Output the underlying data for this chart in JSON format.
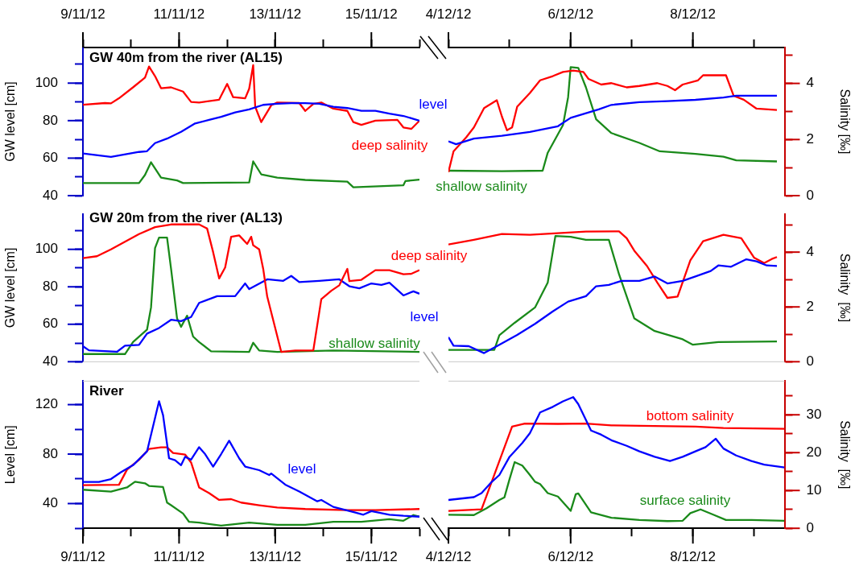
{
  "chart_data": [
    {
      "type": "line",
      "title": "GW 40m from the river (AL15)",
      "ylabel": "GW level [cm]",
      "tick_labels": "xy",
      "marker": "none",
      "xlim": [
        "--11-09",
        "--11-16"
      ],
      "xticks": [
        {
          "value": "--11-09",
          "label": "9/11/12"
        },
        {
          "value": "--11-10",
          "label": null
        },
        {
          "value": "--11-11",
          "label": "11/11/12"
        },
        {
          "value": "--11-12",
          "label": null
        },
        {
          "value": "--11-13",
          "label": "13/11/12"
        },
        {
          "value": "--11-14",
          "label": null
        },
        {
          "value": "--11-15",
          "label": "15/11/12"
        },
        {
          "value": "--11-16",
          "label": null
        }
      ],
      "ylim": [
        40,
        119
      ],
      "yticks": [
        40,
        {
          "value": 50,
          "label": null
        },
        60,
        {
          "value": 70,
          "label": null
        },
        80,
        {
          "value": 90,
          "label": null
        },
        100,
        {
          "value": 110,
          "label": null
        }
      ],
      "y2lim": [
        0,
        5.28
      ],
      "series": [
        {
          "name": "level",
          "color": "#0000ff",
          "x": [
            "--11-09T00:00",
            "--11-09T14:00",
            "--11-10T04:00",
            "--11-10T08:00",
            "--11-10T12:00",
            "--11-10T18:00",
            "--11-11T01:00",
            "--11-11T08:00",
            "--11-11T15:00",
            "--11-11T21:00",
            "--11-12T04:00",
            "--11-12T11:00",
            "--11-12T18:00",
            "--11-13T01:00",
            "--11-13T08:00",
            "--11-13T15:00",
            "--11-13T22:00",
            "--11-14T05:00",
            "--11-14T12:00",
            "--11-14T19:00",
            "--11-15T02:00",
            "--11-15T09:00",
            "--11-15T16:00",
            "--11-16T00:00"
          ],
          "values": [
            62.5,
            60.7,
            63.3,
            63.7,
            68,
            70.4,
            74,
            78.5,
            80.4,
            82,
            84.4,
            86,
            88.4,
            89,
            89.3,
            89.3,
            89,
            87.4,
            86.7,
            85.2,
            85.2,
            83.7,
            82.5,
            80
          ]
        },
        {
          "name": "deep salinity",
          "color": "#ff0000",
          "axis": "y2",
          "x": [
            "--11-09T00:00",
            "--11-09T11:00",
            "--11-09T14:00",
            "--11-09T18:00",
            "--11-10T01:00",
            "--11-10T07:00",
            "--11-10T09:00",
            "--11-10T12:00",
            "--11-10T15:00",
            "--11-10T20:00",
            "--11-11T02:00",
            "--11-11T06:00",
            "--11-11T10:00",
            "--11-11T20:00",
            "--11-12T00:00",
            "--11-12T03:00",
            "--11-12T09:00",
            "--11-12T11:00",
            "--11-12T13:00",
            "--11-12T14:00",
            "--11-12T17:00",
            "--11-12T22:00",
            "--11-13T01:00",
            "--11-13T12:00",
            "--11-13T15:00",
            "--11-13T19:00",
            "--11-13T23:00",
            "--11-14T05:00",
            "--11-14T12:00",
            "--11-14T15:00",
            "--11-14T19:00",
            "--11-15T02:00",
            "--11-15T13:00",
            "--11-15T16:00",
            "--11-15T20:00",
            "--11-16T00:00"
          ],
          "values": [
            3.24,
            3.3,
            3.29,
            3.47,
            3.86,
            4.21,
            4.6,
            4.26,
            3.83,
            3.86,
            3.71,
            3.34,
            3.32,
            3.42,
            3.98,
            3.51,
            3.47,
            3.81,
            4.65,
            3.17,
            2.62,
            3.22,
            3.32,
            3.3,
            3.02,
            3.27,
            3.32,
            3.1,
            3.02,
            2.62,
            2.52,
            2.67,
            2.7,
            2.43,
            2.38,
            2.67
          ]
        },
        {
          "name": "shallow salinity",
          "color": "#1a8a1a",
          "axis": "y2",
          "x": [
            "--11-09T00:00",
            "--11-10T04:00",
            "--11-10T07:00",
            "--11-10T10:00",
            "--11-10T15:00",
            "--11-10T23:00",
            "--11-11T02:00",
            "--11-12T11:00",
            "--11-12T13:00",
            "--11-12T17:00",
            "--11-13T01:00",
            "--11-13T15:00",
            "--11-14T12:00",
            "--11-14T15:00",
            "--11-15T16:00",
            "--11-15T17:00",
            "--11-16T00:00"
          ],
          "values": [
            0.45,
            0.45,
            0.74,
            1.19,
            0.64,
            0.54,
            0.45,
            0.47,
            1.22,
            0.76,
            0.64,
            0.56,
            0.5,
            0.3,
            0.37,
            0.52,
            0.57
          ]
        }
      ]
    },
    {
      "type": "line",
      "y2label": "Salinity [‰]",
      "tick_labels": "xy2",
      "marker": "none",
      "xlim": [
        "--12-04",
        "--12-09T12:00"
      ],
      "xticks": [
        {
          "value": "--12-04",
          "label": "4/12/12"
        },
        {
          "value": "--12-05",
          "label": null
        },
        {
          "value": "--12-06",
          "label": "6/12/12"
        },
        {
          "value": "--12-07",
          "label": null
        },
        {
          "value": "--12-08",
          "label": "8/12/12"
        },
        {
          "value": "--12-09",
          "label": null
        }
      ],
      "ylim": [
        40,
        119
      ],
      "y2lim": [
        0,
        5.28
      ],
      "y2ticks": [
        0,
        {
          "value": 1,
          "label": null
        },
        2,
        {
          "value": 3,
          "label": null
        },
        4,
        {
          "value": 5,
          "label": null
        }
      ],
      "series": [
        {
          "color": "#0000ff",
          "x": [
            "--12-04T00:00",
            "--12-04T03:00",
            "--12-04T10:00",
            "--12-04T21:00",
            "--12-05T08:00",
            "--12-05T19:00",
            "--12-06T00:00",
            "--12-06T11:00",
            "--12-06T16:00",
            "--12-07T03:00",
            "--12-07T14:00",
            "--12-08T01:00",
            "--12-08T12:00",
            "--12-08T17:00",
            "--12-08T23:00",
            "--12-09T09:00"
          ],
          "values": [
            69,
            67.4,
            70.4,
            71.9,
            74,
            77,
            81.5,
            86,
            88.4,
            89.9,
            90.4,
            91.1,
            92.3,
            93.3,
            93.3,
            93.3
          ]
        },
        {
          "color": "#ff0000",
          "axis": "y2",
          "x": [
            "--12-04T00:00",
            "--12-04T02:00",
            "--12-04T07:00",
            "--12-04T10:00",
            "--12-04T14:00",
            "--12-04T19:00",
            "--12-04T21:00",
            "--12-04T23:00",
            "--12-05T01:00",
            "--12-05T03:00",
            "--12-05T08:00",
            "--12-05T12:00",
            "--12-05T17:00",
            "--12-05T21:00",
            "--12-06T01:00",
            "--12-06T05:00",
            "--12-06T07:00",
            "--12-06T12:00",
            "--12-06T16:00",
            "--12-06T22:00",
            "--12-07T03:00",
            "--12-07T10:00",
            "--12-07T14:00",
            "--12-07T17:00",
            "--12-07T20:00",
            "--12-08T02:00",
            "--12-08T04:00",
            "--12-08T13:00",
            "--12-08T16:00",
            "--12-08T20:00",
            "--12-09T01:00",
            "--12-09T09:00"
          ],
          "values": [
            0.84,
            1.58,
            2.08,
            2.43,
            3.12,
            3.4,
            2.82,
            2.33,
            2.43,
            3.17,
            3.66,
            4.11,
            4.26,
            4.41,
            4.46,
            4.41,
            4.16,
            3.96,
            4.01,
            3.86,
            3.91,
            4.01,
            3.91,
            3.76,
            3.96,
            4.11,
            4.29,
            4.29,
            3.56,
            3.42,
            3.1,
            3.05
          ]
        },
        {
          "color": "#1a8a1a",
          "axis": "y2",
          "x": [
            "--12-04T00:00",
            "--12-04T21:00",
            "--12-05T13:00",
            "--12-05T15:00",
            "--12-05T21:00",
            "--12-05T23:00",
            "--12-06T00:00",
            "--12-06T03:00",
            "--12-06T06:00",
            "--12-06T10:00",
            "--12-06T16:00",
            "--12-07T03:00",
            "--12-07T11:00",
            "--12-08T01:00",
            "--12-08T12:00",
            "--12-08T17:00",
            "--12-09T09:00"
          ],
          "values": [
            0.89,
            0.87,
            0.89,
            1.53,
            2.52,
            3.51,
            4.58,
            4.55,
            3.86,
            2.72,
            2.23,
            1.88,
            1.58,
            1.49,
            1.39,
            1.26,
            1.22
          ]
        }
      ]
    },
    {
      "type": "line",
      "title": "GW 20m from the river (AL13)",
      "ylabel": "GW level [cm]",
      "tick_labels": "y",
      "marker": "none",
      "xlim": [
        "--11-09",
        "--11-16"
      ],
      "ylim": [
        40,
        119
      ],
      "yticks": [
        40,
        {
          "value": 50,
          "label": null
        },
        60,
        {
          "value": 70,
          "label": null
        },
        80,
        {
          "value": 90,
          "label": null
        },
        100,
        {
          "value": 110,
          "label": null
        }
      ],
      "y2lim": [
        0,
        5.4
      ],
      "series": [
        {
          "name": "deep salinity",
          "color": "#ff0000",
          "axis": "y2",
          "x": [
            "--11-09T00:00",
            "--11-09T07:00",
            "--11-09T14:00",
            "--11-10T04:00",
            "--11-10T12:00",
            "--11-10T20:00",
            "--11-11T10:00",
            "--11-11T14:00",
            "--11-11T17:00",
            "--11-11T20:00",
            "--11-11T23:00",
            "--11-12T02:00",
            "--11-12T06:00",
            "--11-12T10:00",
            "--11-12T12:00",
            "--11-12T13:00",
            "--11-12T16:00",
            "--11-12T18:00",
            "--11-12T20:00",
            "--11-13T03:00",
            "--11-13T10:00",
            "--11-13T19:00",
            "--11-13T23:00",
            "--11-14T04:00",
            "--11-14T08:00",
            "--11-14T12:00",
            "--11-14T13:00",
            "--11-14T19:00",
            "--11-15T02:00",
            "--11-15T09:00",
            "--11-15T16:00",
            "--11-15T20:00",
            "--11-16T00:00"
          ],
          "values": [
            3.78,
            3.85,
            4.1,
            4.66,
            4.91,
            5.01,
            5.01,
            4.86,
            4.0,
            3.04,
            3.44,
            4.56,
            4.61,
            4.3,
            4.56,
            4.25,
            4.1,
            3.39,
            2.38,
            0.36,
            0.41,
            0.41,
            2.28,
            2.59,
            2.79,
            3.39,
            2.94,
            2.99,
            3.34,
            3.34,
            3.19,
            3.21,
            3.34
          ]
        },
        {
          "name": "level",
          "color": "#0000ff",
          "x": [
            "--11-09T00:00",
            "--11-09T03:00",
            "--11-09T17:00",
            "--11-09T21:00",
            "--11-10T04:00",
            "--11-10T08:00",
            "--11-10T14:00",
            "--11-10T20:00",
            "--11-11T01:00",
            "--11-11T06:00",
            "--11-11T10:00",
            "--11-11T19:00",
            "--11-12T04:00",
            "--11-12T09:00",
            "--11-12T11:00",
            "--11-12T20:00",
            "--11-13T04:00",
            "--11-13T08:00",
            "--11-13T12:00",
            "--11-13T22:00",
            "--11-14T08:00",
            "--11-14T13:00",
            "--11-14T18:00",
            "--11-15T00:00",
            "--11-15T05:00",
            "--11-15T09:00",
            "--11-15T16:00",
            "--11-15T21:00",
            "--11-16T00:00"
          ],
          "values": [
            48.3,
            46.1,
            45.3,
            48.6,
            49,
            55,
            58,
            62.4,
            61.7,
            63.9,
            71.4,
            75,
            75,
            81.8,
            78.8,
            84,
            83.2,
            85.8,
            82.5,
            83.2,
            84,
            80.3,
            79.2,
            81.8,
            81,
            82.2,
            75.4,
            77.6,
            76.3
          ]
        },
        {
          "name": "shallow salinity",
          "color": "#1a8a1a",
          "axis": "y2",
          "x": [
            "--11-09T00:00",
            "--11-09T21:00",
            "--11-10T01:00",
            "--11-10T08:00",
            "--11-10T10:00",
            "--11-10T12:00",
            "--11-10T14:00",
            "--11-10T18:00",
            "--11-10T20:00",
            "--11-10T23:00",
            "--11-11T01:00",
            "--11-11T04:00",
            "--11-11T07:00",
            "--11-11T10:00",
            "--11-11T16:00",
            "--11-12T11:00",
            "--11-12T13:00",
            "--11-12T16:00",
            "--11-13T01:00",
            "--11-14T05:00",
            "--11-16T00:00"
          ],
          "values": [
            0.28,
            0.28,
            0.72,
            1.17,
            1.98,
            4.15,
            4.53,
            4.53,
            3.39,
            1.58,
            1.27,
            1.68,
            0.92,
            0.72,
            0.38,
            0.36,
            0.69,
            0.41,
            0.36,
            0.41,
            0.36
          ]
        }
      ]
    },
    {
      "type": "line",
      "y2label": "Salinity  [‰]",
      "tick_labels": "y2",
      "marker": "none",
      "xlim": [
        "--12-04",
        "--12-09T12:00"
      ],
      "ylim": [
        40,
        119
      ],
      "y2lim": [
        0,
        5.4
      ],
      "y2ticks": [
        0,
        {
          "value": 1,
          "label": null
        },
        2,
        {
          "value": 3,
          "label": null
        },
        4,
        {
          "value": 5,
          "label": null
        }
      ],
      "series": [
        {
          "color": "#0000ff",
          "x": [
            "--12-04T00:00",
            "--12-04T02:00",
            "--12-04T08:00",
            "--12-04T14:00",
            "--12-04T19:00",
            "--12-05T03:00",
            "--12-05T10:00",
            "--12-05T17:00",
            "--12-05T23:00",
            "--12-06T06:00",
            "--12-06T10:00",
            "--12-06T15:00",
            "--12-06T20:00",
            "--12-07T03:00",
            "--12-07T09:00",
            "--12-07T14:00",
            "--12-07T20:00",
            "--12-08T01:00",
            "--12-08T07:00",
            "--12-08T10:00",
            "--12-08T15:00",
            "--12-08T21:00",
            "--12-09T01:00",
            "--12-09T05:00",
            "--12-09T09:00"
          ],
          "values": [
            53.1,
            48.6,
            48.3,
            44.6,
            48.3,
            54.3,
            60.2,
            66.9,
            72.1,
            75,
            80.3,
            81,
            83.2,
            83.2,
            85.5,
            81.8,
            83.2,
            85.5,
            88.4,
            91.4,
            90.7,
            94.7,
            93.6,
            91.4,
            91.1
          ]
        },
        {
          "color": "#ff0000",
          "axis": "y2",
          "x": [
            "--12-04T00:00",
            "--12-04T10:00",
            "--12-04T21:00",
            "--12-05T08:00",
            "--12-05T19:00",
            "--12-06T06:00",
            "--12-06T19:00",
            "--12-06T22:00",
            "--12-07T01:00",
            "--12-07T06:00",
            "--12-07T10:00",
            "--12-07T14:00",
            "--12-07T18:00",
            "--12-07T23:00",
            "--12-08T04:00",
            "--12-08T12:00",
            "--12-08T19:00",
            "--12-09T00:00",
            "--12-09T04:00",
            "--12-09T07:00",
            "--12-09T09:00"
          ],
          "values": [
            4.28,
            4.45,
            4.66,
            4.63,
            4.69,
            4.75,
            4.76,
            4.51,
            4.05,
            3.49,
            2.89,
            2.33,
            2.38,
            3.7,
            4.4,
            4.63,
            4.51,
            3.8,
            3.6,
            3.75,
            3.82
          ]
        },
        {
          "color": "#1a8a1a",
          "axis": "y2",
          "x": [
            "--12-04T00:00",
            "--12-04T18:00",
            "--12-04T20:00",
            "--12-05T02:00",
            "--12-05T10:00",
            "--12-05T15:00",
            "--12-05T18:00",
            "--12-06T00:00",
            "--12-06T06:00",
            "--12-06T15:00",
            "--12-06T19:00",
            "--12-07T01:00",
            "--12-07T09:00",
            "--12-07T20:00",
            "--12-08T00:00",
            "--12-08T10:00",
            "--12-09T09:00"
          ],
          "values": [
            0.43,
            0.43,
            0.97,
            1.42,
            1.98,
            2.89,
            4.59,
            4.56,
            4.45,
            4.45,
            3.19,
            1.58,
            1.12,
            0.82,
            0.62,
            0.72,
            0.74
          ]
        }
      ]
    },
    {
      "type": "line",
      "title": "River",
      "ylabel": "Level [cm]",
      "tick_labels": "xy",
      "marker": "none",
      "xlim": [
        "--11-09",
        "--11-16"
      ],
      "xticks": [
        {
          "value": "--11-09",
          "label": "9/11/12"
        },
        {
          "value": "--11-10",
          "label": null
        },
        {
          "value": "--11-11",
          "label": "11/11/12"
        },
        {
          "value": "--11-12",
          "label": null
        },
        {
          "value": "--11-13",
          "label": "13/11/12"
        },
        {
          "value": "--11-14",
          "label": null
        },
        {
          "value": "--11-15",
          "label": "15/11/12"
        },
        {
          "value": "--11-16",
          "label": null
        }
      ],
      "ylim": [
        20,
        139
      ],
      "yticks": [
        {
          "value": 20,
          "label": null
        },
        40,
        {
          "value": 60,
          "label": null
        },
        80,
        {
          "value": 100,
          "label": null
        },
        120
      ],
      "y2lim": [
        0,
        38.9
      ],
      "series": [
        {
          "name": "level",
          "color": "#0000ff",
          "x": [
            "--11-09T00:00",
            "--11-09T08:00",
            "--11-09T14:00",
            "--11-09T19:00",
            "--11-10T01:00",
            "--11-10T08:00",
            "--11-10T12:00",
            "--11-10T14:00",
            "--11-10T16:00",
            "--11-10T19:00",
            "--11-10T22:00",
            "--11-11T01:00",
            "--11-11T03:00",
            "--11-11T06:00",
            "--11-11T10:00",
            "--11-11T13:00",
            "--11-11T17:00",
            "--11-11T21:00",
            "--11-12T01:00",
            "--11-12T06:00",
            "--11-12T09:00",
            "--11-12T16:00",
            "--11-12T21:00",
            "--11-12T22:00",
            "--11-13T05:00",
            "--11-13T12:00",
            "--11-13T21:00",
            "--11-13T23:00",
            "--11-14T05:00",
            "--11-14T16:00",
            "--11-14T20:00",
            "--11-15T00:00",
            "--11-15T09:00",
            "--11-15T16:00",
            "--11-16T00:00"
          ],
          "values": [
            57.5,
            57.5,
            59.8,
            65.4,
            71,
            82.2,
            109.2,
            122.7,
            111.5,
            76.6,
            75,
            71,
            77.8,
            75.5,
            85.6,
            80,
            69.9,
            80,
            90.8,
            76.6,
            69.9,
            67,
            63.1,
            64.3,
            55.3,
            49.7,
            41.8,
            42.9,
            37.3,
            32.8,
            31,
            33.9,
            31,
            30.1,
            29.4
          ]
        },
        {
          "color": "#ff0000",
          "axis": "y2",
          "x": [
            "--11-09T00:00",
            "--11-09T18:00",
            "--11-09T22:00",
            "--11-10T04:00",
            "--11-10T09:00",
            "--11-10T15:00",
            "--11-10T18:00",
            "--11-10T21:00",
            "--11-11T03:00",
            "--11-11T06:00",
            "--11-11T10:00",
            "--11-11T15:00",
            "--11-11T20:00",
            "--11-12T02:00",
            "--11-12T07:00",
            "--11-12T16:00",
            "--11-13T01:00",
            "--11-13T15:00",
            "--11-14T12:00",
            "--11-15T02:00",
            "--11-16T00:00"
          ],
          "values": [
            11.4,
            11.5,
            15.5,
            18.1,
            21.0,
            21.4,
            21.4,
            19.9,
            19.5,
            17.4,
            10.8,
            9.3,
            7.5,
            7.7,
            6.8,
            6.1,
            5.5,
            5.1,
            4.8,
            4.8,
            5.1
          ]
        },
        {
          "color": "#1a8a1a",
          "axis": "y2",
          "x": [
            "--11-09T00:00",
            "--11-09T14:00",
            "--11-09T22:00",
            "--11-10T02:00",
            "--11-10T07:00",
            "--11-10T09:00",
            "--11-10T16:00",
            "--11-10T18:00",
            "--11-10T20:00",
            "--11-11T02:00",
            "--11-11T05:00",
            "--11-11T10:00",
            "--11-11T21:00",
            "--11-12T11:00",
            "--11-13T01:00",
            "--11-13T15:00",
            "--11-14T05:00",
            "--11-14T19:00",
            "--11-15T09:00",
            "--11-15T16:00",
            "--11-15T21:00",
            "--11-16T00:00"
          ],
          "values": [
            10.2,
            9.7,
            10.8,
            12.3,
            11.9,
            11.2,
            10.9,
            6.8,
            6.1,
            3.9,
            1.7,
            1.5,
            0.7,
            1.5,
            0.9,
            0.9,
            1.7,
            1.7,
            2.4,
            2.0,
            3.5,
            3.1
          ]
        }
      ]
    },
    {
      "type": "line",
      "y2label": "Salinity  [‰]",
      "tick_labels": "xy2",
      "marker": "none",
      "xlim": [
        "--12-04",
        "--12-09T12:00"
      ],
      "xticks": [
        {
          "value": "--12-04",
          "label": "4/12/12"
        },
        {
          "value": "--12-05",
          "label": null
        },
        {
          "value": "--12-06",
          "label": "6/12/12"
        },
        {
          "value": "--12-07",
          "label": null
        },
        {
          "value": "--12-08",
          "label": "8/12/12"
        },
        {
          "value": "--12-09",
          "label": null
        }
      ],
      "ylim": [
        20,
        139
      ],
      "y2lim": [
        0,
        38.9
      ],
      "y2ticks": [
        0,
        {
          "value": 5,
          "label": null
        },
        10,
        {
          "value": 15,
          "label": null
        },
        20,
        {
          "value": 25,
          "label": null
        },
        30,
        {
          "value": 35,
          "label": null
        }
      ],
      "series": [
        {
          "color": "#0000ff",
          "x": [
            "--12-04T00:00",
            "--12-04T10:00",
            "--12-04T13:00",
            "--12-04T17:00",
            "--12-04T20:00",
            "--12-05T00:00",
            "--12-05T05:00",
            "--12-05T08:00",
            "--12-05T12:00",
            "--12-05T17:00",
            "--12-05T21:00",
            "--12-06T01:00",
            "--12-06T03:00",
            "--12-06T08:00",
            "--12-06T12:00",
            "--12-06T16:00",
            "--12-06T22:00",
            "--12-07T03:00",
            "--12-07T09:00",
            "--12-07T15:00",
            "--12-07T20:00",
            "--12-08T01:00",
            "--12-08T05:00",
            "--12-08T09:00",
            "--12-08T12:00",
            "--12-08T17:00",
            "--12-08T23:00",
            "--12-09T04:00",
            "--12-09T12:00"
          ],
          "values": [
            42.9,
            45.2,
            48.5,
            57.5,
            63.1,
            77.8,
            89,
            96.9,
            113.7,
            118.2,
            122.7,
            126.1,
            120.4,
            99.1,
            95.7,
            91.2,
            86.7,
            82.2,
            77.8,
            74.4,
            77.8,
            82.2,
            85.6,
            92.4,
            84.5,
            78.9,
            74.4,
            71.5,
            69.2
          ]
        },
        {
          "name": "bottom salinity",
          "color": "#ff0000",
          "axis": "y2",
          "x": [
            "--12-04T00:00",
            "--12-04T13:00",
            "--12-04T17:00",
            "--12-04T21:00",
            "--12-05T01:00",
            "--12-05T06:00",
            "--12-05T19:00",
            "--12-06T06:00",
            "--12-06T16:00",
            "--12-07T14:00",
            "--12-08T01:00",
            "--12-08T12:00",
            "--12-09T12:00"
          ],
          "values": [
            4.6,
            5.0,
            12.3,
            19.6,
            26.9,
            27.7,
            27.6,
            27.7,
            27.2,
            27.0,
            26.9,
            26.5,
            26.3
          ]
        },
        {
          "name": "surface salinity",
          "color": "#1a8a1a",
          "axis": "y2",
          "x": [
            "--12-04T00:00",
            "--12-04T10:00",
            "--12-04T15:00",
            "--12-04T20:00",
            "--12-04T22:00",
            "--12-05T00:00",
            "--12-05T02:00",
            "--12-05T05:00",
            "--12-05T08:00",
            "--12-05T10:00",
            "--12-05T12:00",
            "--12-05T15:00",
            "--12-05T19:00",
            "--12-06T00:00",
            "--12-06T02:00",
            "--12-06T03:00",
            "--12-06T08:00",
            "--12-06T16:00",
            "--12-07T03:00",
            "--12-07T14:00",
            "--12-07T20:00",
            "--12-07T23:00",
            "--12-08T03:00",
            "--12-08T08:00",
            "--12-08T13:00",
            "--12-08T23:00",
            "--12-09T12:00"
          ],
          "values": [
            3.6,
            3.5,
            5.3,
            7.5,
            8.2,
            13.0,
            17.5,
            16.6,
            14.1,
            12.3,
            11.7,
            9.3,
            8.4,
            4.6,
            9.0,
            9.2,
            4.2,
            2.8,
            2.2,
            1.9,
            2.0,
            4.0,
            5.0,
            3.6,
            2.2,
            2.2,
            2.0
          ]
        }
      ]
    }
  ]
}
